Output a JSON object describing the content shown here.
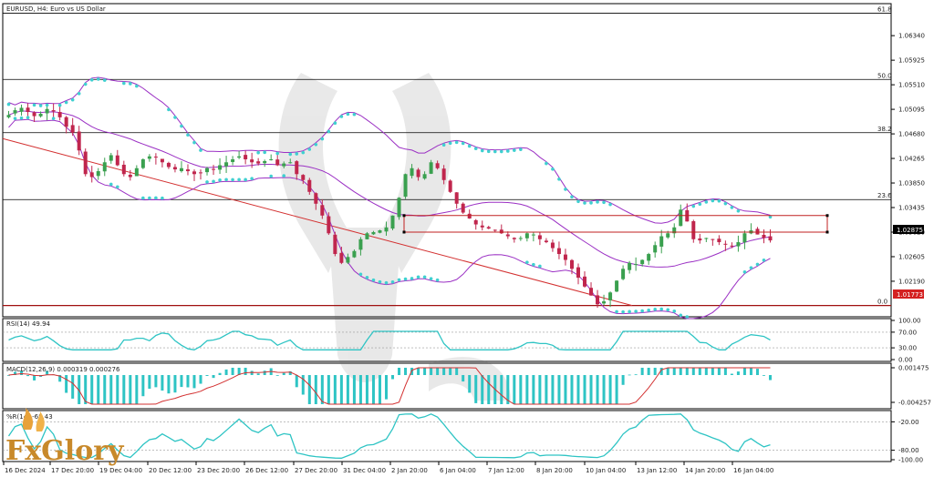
{
  "chart_title": "EURUSD, H4:  Euro vs US Dollar",
  "brand": "FxGlory",
  "colors": {
    "bull": "#3aa04f",
    "bear": "#c0264d",
    "bollinger": "#9b30c4",
    "sar": "#3fd0d0",
    "trendline": "#d33030",
    "indicator": "#2ec4c4",
    "macd_signal": "#d33030",
    "price_tag": "#000000",
    "support_tag": "#d42020"
  },
  "chart_data": [
    {
      "type": "candlestick",
      "panel": "price",
      "symbol": "EURUSD",
      "timeframe": "H4",
      "ylim": [
        1.0162,
        1.0685
      ],
      "y_ticks": [
        "1.06340",
        "1.05925",
        "1.05510",
        "1.05095",
        "1.04680",
        "1.04265",
        "1.03850",
        "1.03435",
        "1.03020",
        "1.02605",
        "1.02190"
      ],
      "x_ticks": [
        "16 Dec 2024",
        "17 Dec 20:00",
        "19 Dec 04:00",
        "20 Dec 12:00",
        "23 Dec 20:00",
        "26 Dec 12:00",
        "27 Dec 20:00",
        "31 Dec 04:00",
        "2 Jan 20:00",
        "6 Jan 04:00",
        "7 Jan 12:00",
        "8 Jan 20:00",
        "10 Jan 04:00",
        "13 Jan 12:00",
        "14 Jan 20:00",
        "16 Jan 04:00"
      ],
      "current_price": "1.02875",
      "support_price": "1.01773",
      "fibonacci": [
        {
          "label": "61.8",
          "price": 1.0672
        },
        {
          "label": "50.0",
          "price": 1.056
        },
        {
          "label": "38.2",
          "price": 1.047
        },
        {
          "label": "23.6",
          "price": 1.0357
        },
        {
          "label": "0.0",
          "price": 1.0178
        }
      ],
      "range_box": {
        "top": 1.033,
        "bottom": 1.0302
      }
    },
    {
      "type": "line",
      "panel": "rsi",
      "label": "RSI(14) 49.94",
      "ylim": [
        0,
        100
      ],
      "y_ticks": [
        "100.00",
        "70.00",
        "30.00",
        "0.00"
      ],
      "last": 49.94
    },
    {
      "type": "bar",
      "panel": "macd",
      "label": "MACD(12,26,9) 0.000319 0.000276",
      "y_ticks": [
        "0.001475",
        "-0.004257"
      ]
    },
    {
      "type": "line",
      "panel": "williams",
      "label": "%R(14) -68.43",
      "ylim": [
        -100,
        0
      ],
      "y_ticks": [
        "-20.00",
        "-80.00",
        "-100.00"
      ],
      "last": -68.43
    }
  ]
}
